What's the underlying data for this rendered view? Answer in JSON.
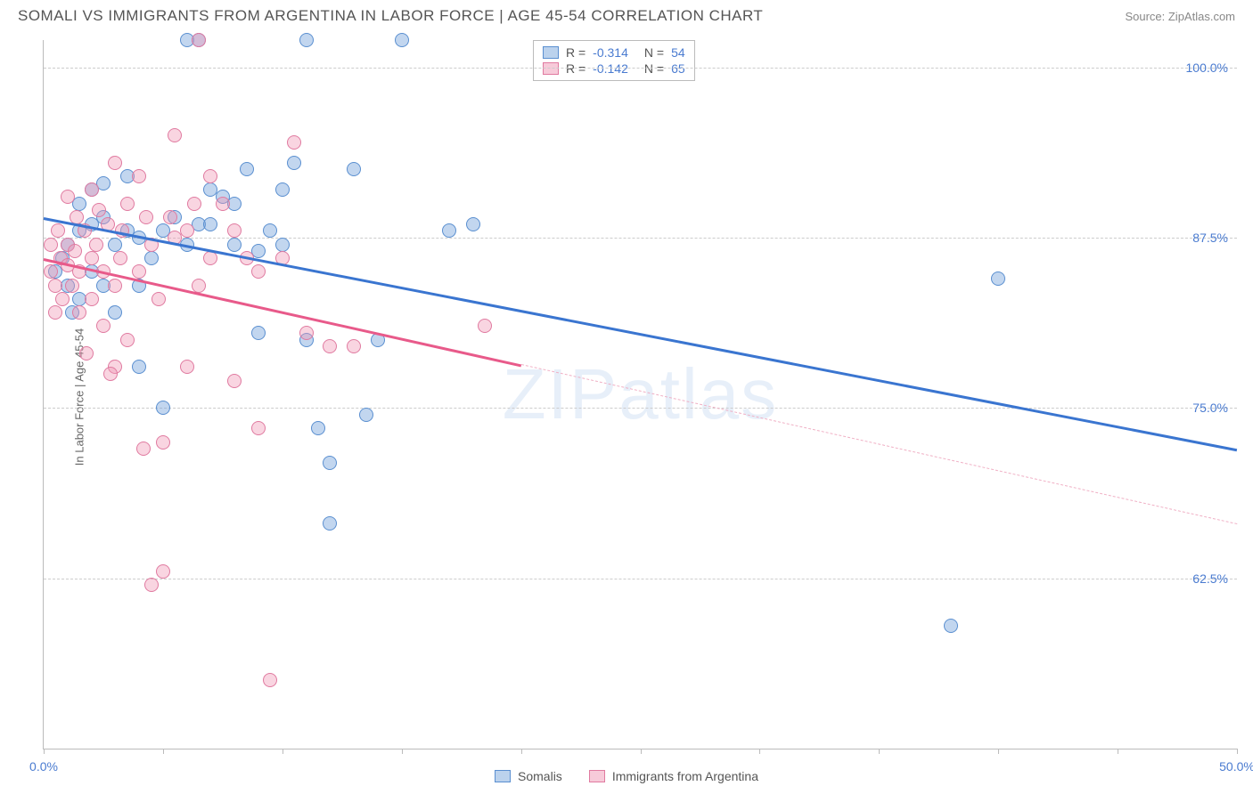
{
  "header": {
    "title": "SOMALI VS IMMIGRANTS FROM ARGENTINA IN LABOR FORCE | AGE 45-54 CORRELATION CHART",
    "source": "Source: ZipAtlas.com"
  },
  "ylabel": "In Labor Force | Age 45-54",
  "watermark": "ZIPatlas",
  "chart": {
    "type": "scatter",
    "xlim": [
      0,
      50
    ],
    "ylim": [
      50,
      102
    ],
    "yTicks": [
      62.5,
      75.0,
      87.5,
      100.0
    ],
    "yTickLabels": [
      "62.5%",
      "75.0%",
      "87.5%",
      "100.0%"
    ],
    "xTicks": [
      0,
      5,
      10,
      15,
      20,
      25,
      30,
      35,
      40,
      45,
      50
    ],
    "xTickLabels": {
      "0": "0.0%",
      "50": "50.0%"
    },
    "background": "#ffffff",
    "grid_color": "#cccccc",
    "marker_radius": 8,
    "series": [
      {
        "name": "Somalis",
        "color_fill": "rgba(120,165,220,0.45)",
        "color_stroke": "#5a8fd0",
        "R": "-0.314",
        "N": "54",
        "regression": {
          "x1": 0,
          "y1": 89,
          "x2": 50,
          "y2": 72,
          "color": "#3a75d0",
          "dashed_after_x": null
        },
        "points": [
          [
            0.5,
            85
          ],
          [
            0.8,
            86
          ],
          [
            1,
            84
          ],
          [
            1,
            87
          ],
          [
            1.2,
            82
          ],
          [
            1.5,
            88
          ],
          [
            1.5,
            83
          ],
          [
            2,
            88.5
          ],
          [
            2,
            85
          ],
          [
            2.5,
            89
          ],
          [
            2.5,
            84
          ],
          [
            3,
            87
          ],
          [
            3,
            82
          ],
          [
            3.5,
            88
          ],
          [
            4,
            87.5
          ],
          [
            4,
            84
          ],
          [
            4.5,
            86
          ],
          [
            5,
            88
          ],
          [
            5,
            75
          ],
          [
            5.5,
            89
          ],
          [
            6,
            87
          ],
          [
            6.5,
            88.5
          ],
          [
            7,
            88.5
          ],
          [
            7,
            91
          ],
          [
            7.5,
            90.5
          ],
          [
            8,
            87
          ],
          [
            8,
            90
          ],
          [
            8.5,
            92.5
          ],
          [
            9,
            86.5
          ],
          [
            9,
            80.5
          ],
          [
            9.5,
            88
          ],
          [
            10,
            91
          ],
          [
            10,
            87
          ],
          [
            10.5,
            93
          ],
          [
            11,
            102
          ],
          [
            11,
            80
          ],
          [
            11.5,
            73.5
          ],
          [
            12,
            71
          ],
          [
            12,
            66.5
          ],
          [
            13,
            92.5
          ],
          [
            13.5,
            74.5
          ],
          [
            14,
            80
          ],
          [
            15,
            102
          ],
          [
            17,
            88
          ],
          [
            18,
            88.5
          ],
          [
            40,
            84.5
          ],
          [
            38,
            59
          ],
          [
            6,
            102
          ],
          [
            6.5,
            102
          ],
          [
            2,
            91
          ],
          [
            3.5,
            92
          ],
          [
            4,
            78
          ],
          [
            2.5,
            91.5
          ],
          [
            1.5,
            90
          ]
        ]
      },
      {
        "name": "Immigrants from Argentina",
        "color_fill": "rgba(240,150,180,0.4)",
        "color_stroke": "#e07aa0",
        "R": "-0.142",
        "N": "65",
        "regression": {
          "x1": 0,
          "y1": 86,
          "x2": 50,
          "y2": 66.5,
          "color": "#e85a8a",
          "dashed_after_x": 20
        },
        "points": [
          [
            0.3,
            85
          ],
          [
            0.5,
            84
          ],
          [
            0.7,
            86
          ],
          [
            0.8,
            83
          ],
          [
            1,
            85.5
          ],
          [
            1,
            87
          ],
          [
            1.2,
            84
          ],
          [
            1.3,
            86.5
          ],
          [
            1.5,
            82
          ],
          [
            1.5,
            85
          ],
          [
            1.7,
            88
          ],
          [
            2,
            86
          ],
          [
            2,
            83
          ],
          [
            2.2,
            87
          ],
          [
            2.5,
            85
          ],
          [
            2.5,
            81
          ],
          [
            2.7,
            88.5
          ],
          [
            3,
            84
          ],
          [
            3,
            78
          ],
          [
            3.2,
            86
          ],
          [
            3.5,
            90
          ],
          [
            3.5,
            80
          ],
          [
            4,
            85
          ],
          [
            4,
            92
          ],
          [
            4.2,
            72
          ],
          [
            4.5,
            87
          ],
          [
            4.5,
            62
          ],
          [
            5,
            63
          ],
          [
            5,
            72.5
          ],
          [
            5.5,
            87.5
          ],
          [
            5.5,
            95
          ],
          [
            6,
            78
          ],
          [
            6,
            88
          ],
          [
            6.5,
            84
          ],
          [
            6.5,
            102
          ],
          [
            7,
            86
          ],
          [
            7,
            92
          ],
          [
            7.5,
            90
          ],
          [
            8,
            77
          ],
          [
            8,
            88
          ],
          [
            8.5,
            86
          ],
          [
            9,
            73.5
          ],
          [
            9,
            85
          ],
          [
            9.5,
            55
          ],
          [
            10,
            86
          ],
          [
            10.5,
            94.5
          ],
          [
            11,
            80.5
          ],
          [
            12,
            79.5
          ],
          [
            13,
            79.5
          ],
          [
            18.5,
            81
          ],
          [
            1,
            90.5
          ],
          [
            2,
            91
          ],
          [
            3,
            93
          ],
          [
            0.5,
            82
          ],
          [
            1.8,
            79
          ],
          [
            2.8,
            77.5
          ],
          [
            0.3,
            87
          ],
          [
            0.6,
            88
          ],
          [
            1.4,
            89
          ],
          [
            2.3,
            89.5
          ],
          [
            3.3,
            88
          ],
          [
            4.3,
            89
          ],
          [
            5.3,
            89
          ],
          [
            6.3,
            90
          ],
          [
            4.8,
            83
          ]
        ]
      }
    ]
  },
  "legend": {
    "series1": "Somalis",
    "series2": "Immigrants from Argentina"
  }
}
